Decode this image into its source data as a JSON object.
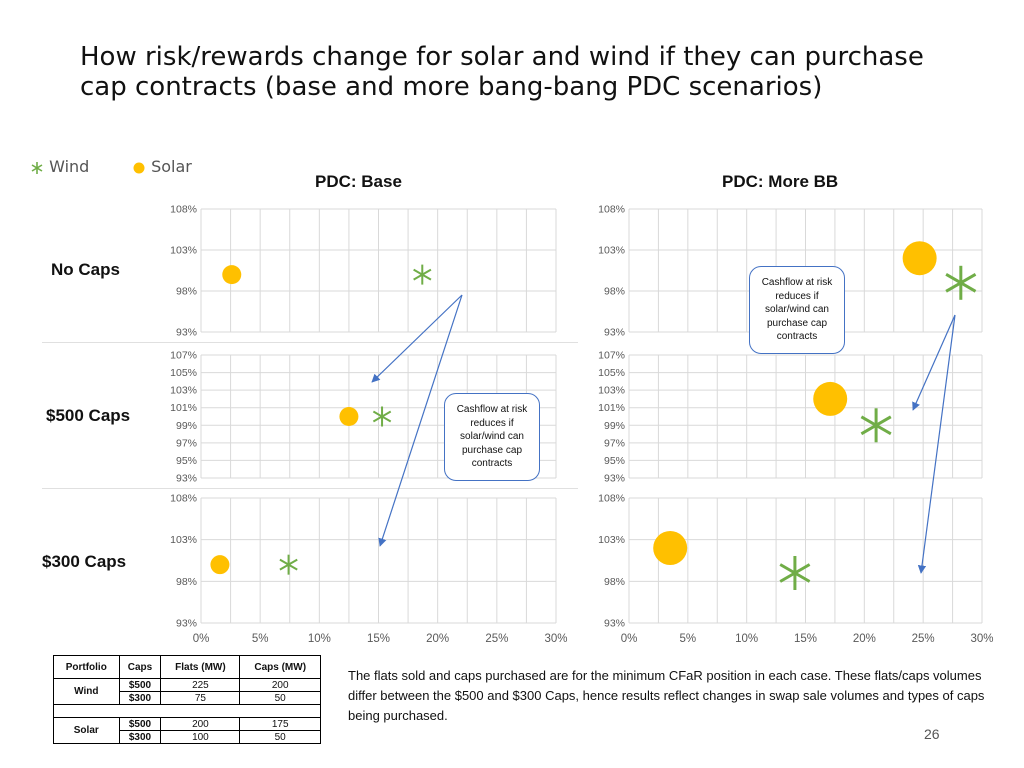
{
  "title": "How risk/rewards change for solar and wind if they can purchase cap contracts (base and more bang-bang PDC scenarios)",
  "legend": [
    {
      "name": "Wind",
      "marker": "asterisk",
      "color": "#70ad47"
    },
    {
      "name": "Solar",
      "marker": "circle",
      "color": "#ffc000"
    }
  ],
  "column_titles": [
    "PDC: Base",
    "PDC: More BB"
  ],
  "row_titles": [
    "No Caps",
    "$500 Caps",
    "$300 Caps"
  ],
  "callouts": [
    "Cashflow at risk reduces if solar/wind can purchase cap contracts",
    "Cashflow at risk reduces if solar/wind can purchase cap contracts"
  ],
  "colors": {
    "wind": "#70ad47",
    "solar": "#ffc000",
    "arrow": "#4472c4",
    "grid": "#d9d9d9",
    "axis_text": "#595959"
  },
  "chart_data": [
    {
      "type": "scatter",
      "panel": "PDC: Base / No Caps",
      "x_ticks_shown": false,
      "xlim": [
        0,
        0.3
      ],
      "ylim": [
        0.93,
        1.08
      ],
      "yticks": [
        "93%",
        "98%",
        "103%",
        "108%"
      ],
      "grid": true,
      "series": [
        {
          "name": "Solar",
          "points": [
            {
              "x": 0.026,
              "y": 1.0
            }
          ]
        },
        {
          "name": "Wind",
          "points": [
            {
              "x": 0.187,
              "y": 1.0
            }
          ]
        }
      ]
    },
    {
      "type": "scatter",
      "panel": "PDC: More BB / No Caps",
      "x_ticks_shown": false,
      "xlim": [
        0,
        0.3
      ],
      "ylim": [
        0.93,
        1.08
      ],
      "yticks": [
        "93%",
        "98%",
        "103%",
        "108%"
      ],
      "grid": true,
      "series": [
        {
          "name": "Solar",
          "points": [
            {
              "x": 0.247,
              "y": 1.02
            }
          ]
        },
        {
          "name": "Wind",
          "points": [
            {
              "x": 0.282,
              "y": 0.99
            }
          ]
        }
      ]
    },
    {
      "type": "scatter",
      "panel": "PDC: Base / $500 Caps",
      "x_ticks_shown": false,
      "xlim": [
        0,
        0.3
      ],
      "ylim": [
        0.93,
        1.07
      ],
      "yticks": [
        "93%",
        "95%",
        "97%",
        "99%",
        "101%",
        "103%",
        "105%",
        "107%"
      ],
      "grid": true,
      "series": [
        {
          "name": "Solar",
          "points": [
            {
              "x": 0.125,
              "y": 1.0
            }
          ]
        },
        {
          "name": "Wind",
          "points": [
            {
              "x": 0.153,
              "y": 1.0
            }
          ]
        }
      ]
    },
    {
      "type": "scatter",
      "panel": "PDC: More BB / $500 Caps",
      "x_ticks_shown": false,
      "xlim": [
        0,
        0.3
      ],
      "ylim": [
        0.93,
        1.07
      ],
      "yticks": [
        "93%",
        "95%",
        "97%",
        "99%",
        "101%",
        "103%",
        "105%",
        "107%"
      ],
      "grid": true,
      "series": [
        {
          "name": "Solar",
          "points": [
            {
              "x": 0.171,
              "y": 1.02
            }
          ]
        },
        {
          "name": "Wind",
          "points": [
            {
              "x": 0.21,
              "y": 0.99
            }
          ]
        }
      ]
    },
    {
      "type": "scatter",
      "panel": "PDC: Base / $300 Caps",
      "x_ticks_shown": true,
      "xlim": [
        0,
        0.3
      ],
      "ylim": [
        0.93,
        1.08
      ],
      "yticks": [
        "93%",
        "98%",
        "103%",
        "108%"
      ],
      "xticks": [
        "0%",
        "5%",
        "10%",
        "15%",
        "20%",
        "25%",
        "30%"
      ],
      "grid": true,
      "series": [
        {
          "name": "Solar",
          "points": [
            {
              "x": 0.016,
              "y": 1.0
            }
          ]
        },
        {
          "name": "Wind",
          "points": [
            {
              "x": 0.074,
              "y": 1.0
            }
          ]
        }
      ]
    },
    {
      "type": "scatter",
      "panel": "PDC: More BB / $300 Caps",
      "x_ticks_shown": true,
      "xlim": [
        0,
        0.3
      ],
      "ylim": [
        0.93,
        1.08
      ],
      "yticks": [
        "93%",
        "98%",
        "103%",
        "108%"
      ],
      "xticks": [
        "0%",
        "5%",
        "10%",
        "15%",
        "20%",
        "25%",
        "30%"
      ],
      "grid": true,
      "series": [
        {
          "name": "Solar",
          "points": [
            {
              "x": 0.035,
              "y": 1.02
            }
          ]
        },
        {
          "name": "Wind",
          "points": [
            {
              "x": 0.141,
              "y": 0.99
            }
          ]
        }
      ]
    }
  ],
  "table": {
    "headers": [
      "Portfolio",
      "Caps",
      "Flats (MW)",
      "Caps (MW)"
    ],
    "groups": [
      {
        "portfolio": "Wind",
        "rows": [
          {
            "caps": "$500",
            "flats": "225",
            "caps_mw": "200"
          },
          {
            "caps": "$300",
            "flats": "75",
            "caps_mw": "50"
          }
        ]
      },
      {
        "portfolio": "Solar",
        "rows": [
          {
            "caps": "$500",
            "flats": "200",
            "caps_mw": "175"
          },
          {
            "caps": "$300",
            "flats": "100",
            "caps_mw": "50"
          }
        ]
      }
    ]
  },
  "note": "The flats sold and caps purchased are for the minimum CFaR position in each case. These flats/caps volumes differ between the $500 and $300 Caps, hence results reflect changes in swap sale volumes and types of caps being purchased.",
  "page_number": "26"
}
